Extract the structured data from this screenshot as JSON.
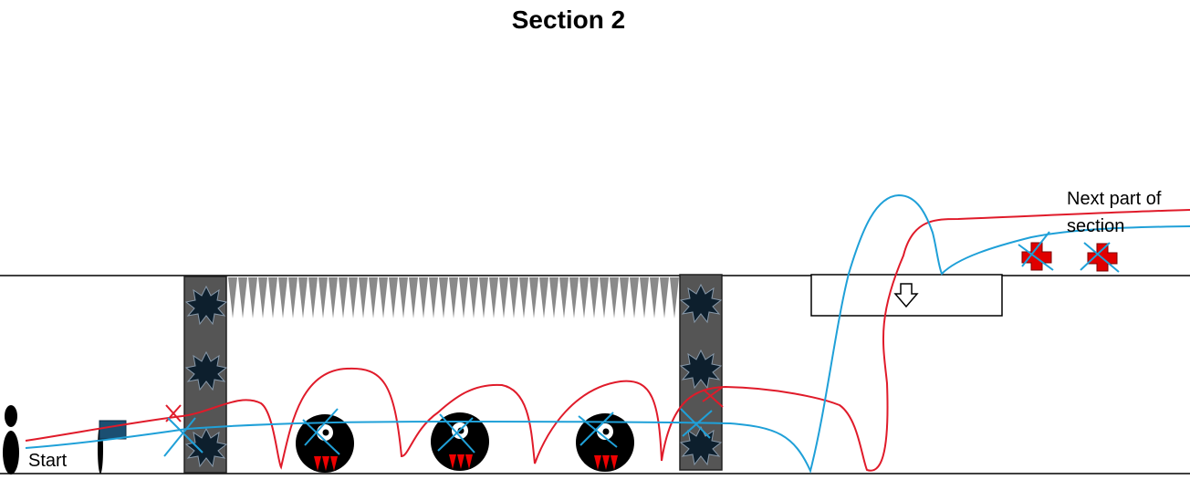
{
  "title": "Section 2",
  "labels": {
    "start": "Start",
    "next_part_line1": "Next part of",
    "next_part_line2": "section"
  },
  "colors": {
    "red_path": "#e01b2a",
    "blue_path": "#1fa0d8",
    "pillar": "#555555",
    "spike": "#8a8a8a",
    "enemy": "#000000",
    "flag": "#1b4f72",
    "health": "#e00000",
    "line": "#000000"
  },
  "icons": {
    "player": "player-figure-icon",
    "checkpoint": "checkpoint-flag-icon",
    "enemy": "enemy-monster-icon",
    "hazard": "spike-burst-icon",
    "drop": "down-arrow-icon",
    "health": "health-cross-icon"
  }
}
